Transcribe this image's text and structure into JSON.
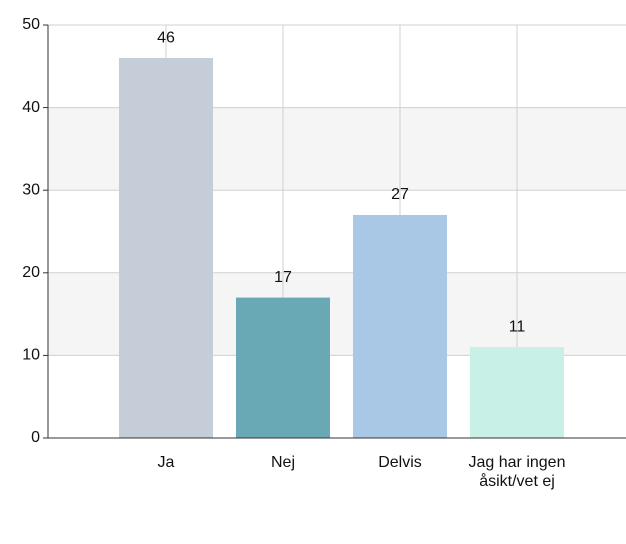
{
  "chart_data": {
    "type": "bar",
    "categories": [
      "Ja",
      "Nej",
      "Delvis",
      "Jag har ingen åsikt/vet ej"
    ],
    "values": [
      46,
      17,
      27,
      11
    ],
    "colors": [
      "#c5cdd9",
      "#68a9b5",
      "#a8c8e5",
      "#c9f0e6"
    ],
    "ylim": [
      0,
      50
    ],
    "yticks": [
      0,
      10,
      20,
      30,
      40,
      50
    ],
    "grid": true
  }
}
